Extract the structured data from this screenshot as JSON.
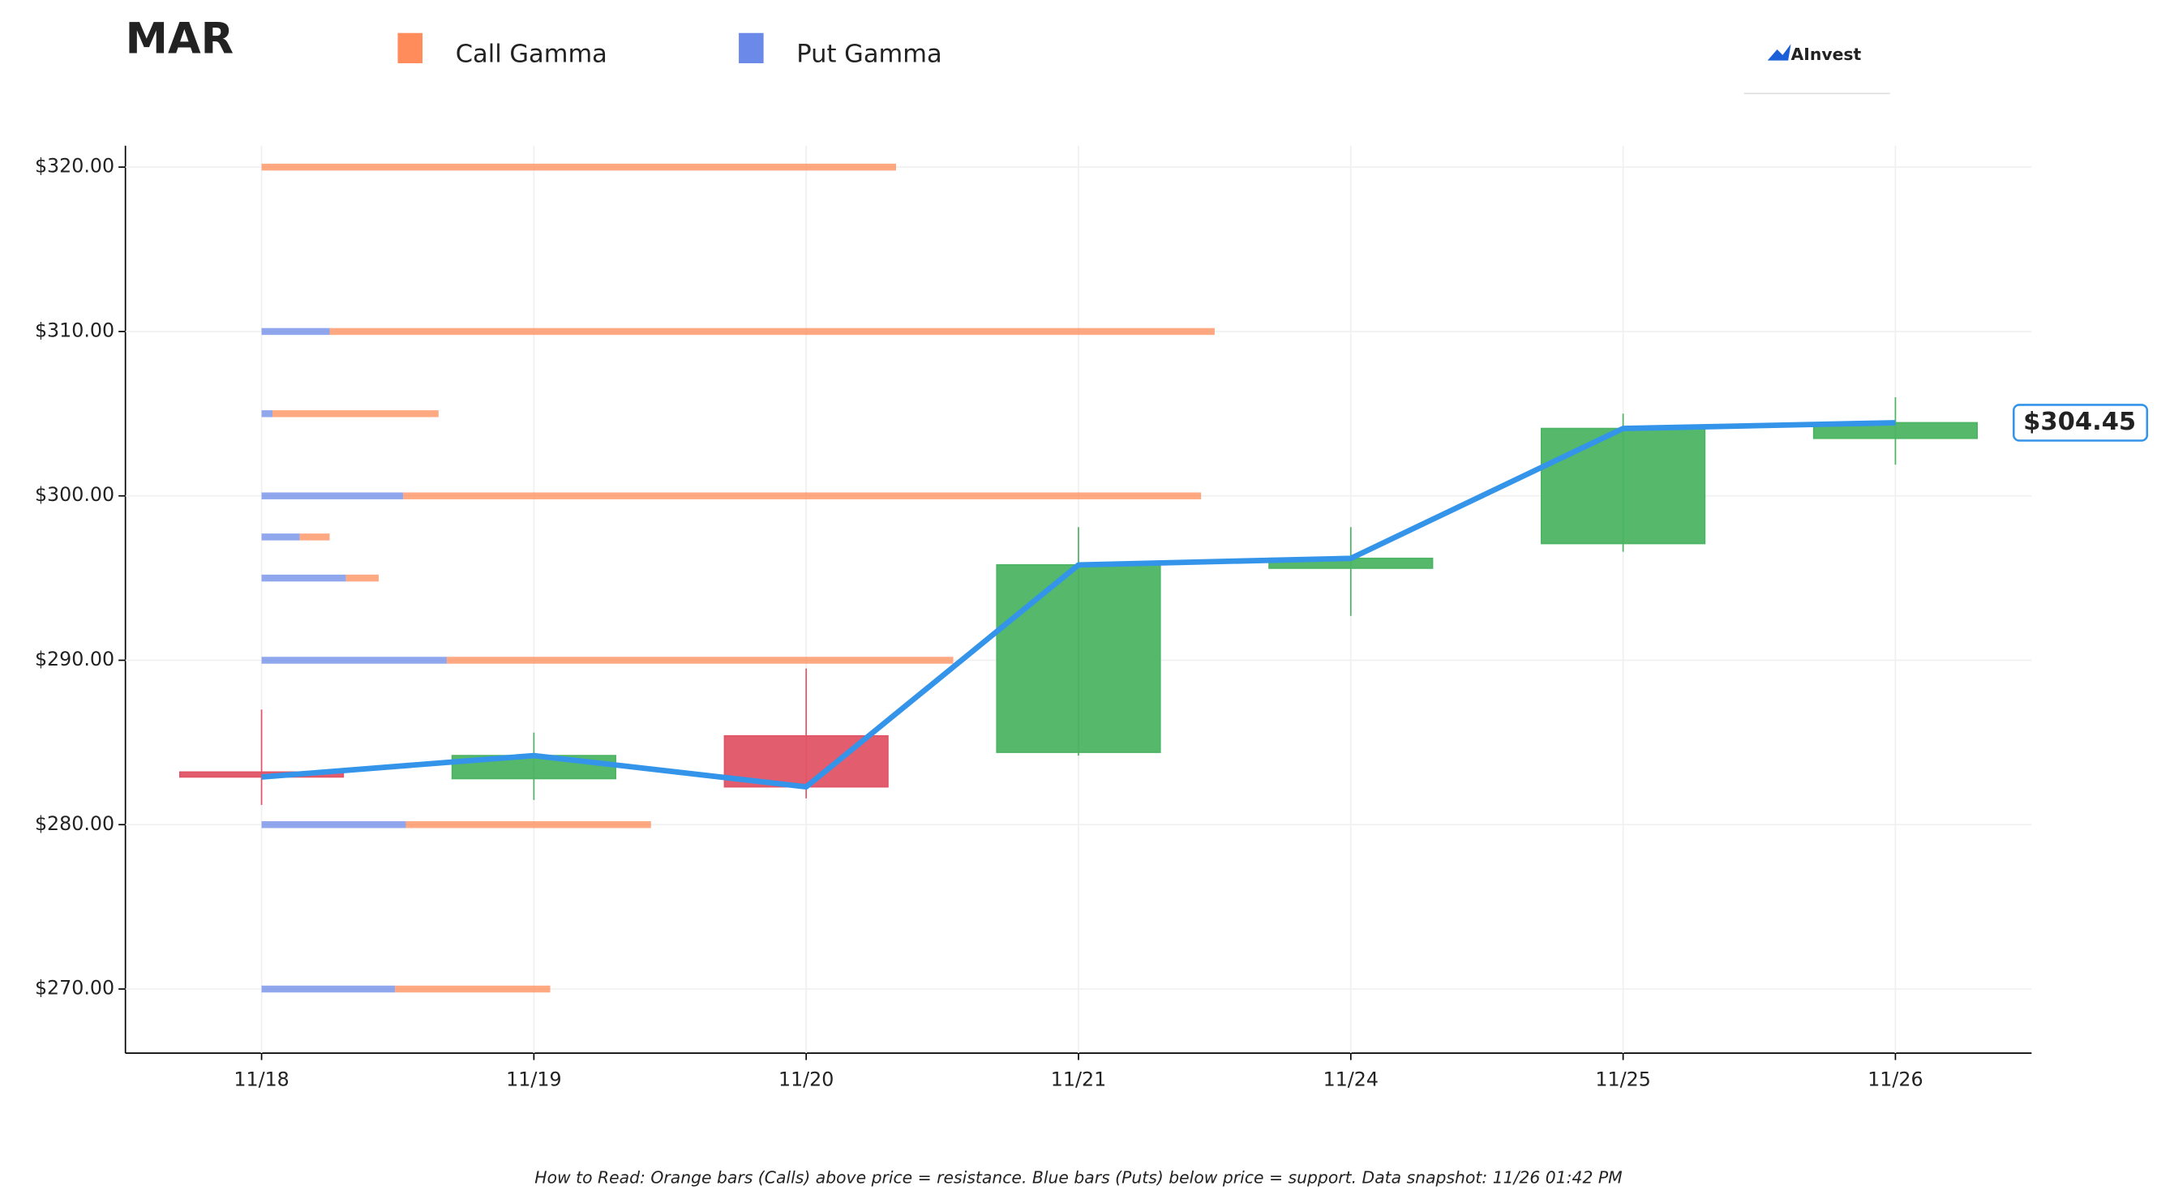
{
  "chart_data": {
    "type": "candlestick",
    "title": "MAR",
    "categories": [
      "11/18",
      "11/19",
      "11/20",
      "11/21",
      "11/24",
      "11/25",
      "11/26"
    ],
    "open": [
      283.2,
      282.8,
      285.4,
      284.4,
      295.6,
      297.1,
      303.5
    ],
    "high": [
      287.0,
      285.6,
      289.5,
      298.1,
      298.1,
      305.0,
      306.0
    ],
    "low": [
      281.2,
      281.5,
      281.6,
      284.2,
      292.7,
      296.6,
      301.9
    ],
    "close": [
      282.9,
      284.2,
      282.3,
      295.8,
      296.2,
      304.1,
      304.45
    ],
    "up_color": "#4cb463",
    "down_color": "#e05466",
    "line_color": "#3394ea",
    "last_price": 304.45,
    "last_price_label": "$304.45",
    "gamma": {
      "strikes": [
        320,
        310,
        305,
        300,
        297.5,
        295,
        290,
        280,
        270
      ],
      "series": [
        {
          "name": "Call Gamma",
          "color": "#ff8c5a",
          "values": [
            2.33,
            3.25,
            0.61,
            2.93,
            0.11,
            0.12,
            1.86,
            0.9,
            0.57
          ]
        },
        {
          "name": "Put Gamma",
          "color": "#6b89e8",
          "values": [
            0,
            0.25,
            0.04,
            0.52,
            0.14,
            0.31,
            0.68,
            0.53,
            0.49
          ]
        }
      ]
    },
    "xlim": [
      -0.5,
      6.5
    ],
    "ylim": [
      266.1,
      321.3
    ],
    "yticks": [
      {
        "value": 270,
        "label": "$270.00"
      },
      {
        "value": 280,
        "label": "$280.00"
      },
      {
        "value": 290,
        "label": "$290.00"
      },
      {
        "value": 300,
        "label": "$300.00"
      },
      {
        "value": 310,
        "label": "$310.00"
      },
      {
        "value": 320,
        "label": "$320.00"
      }
    ],
    "grid": true,
    "logo": "AInvest",
    "footnote": "How to Read: Orange bars (Calls) above price = resistance. Blue bars (Puts) below price = support. Data snapshot: 11/26 01:42 PM"
  }
}
